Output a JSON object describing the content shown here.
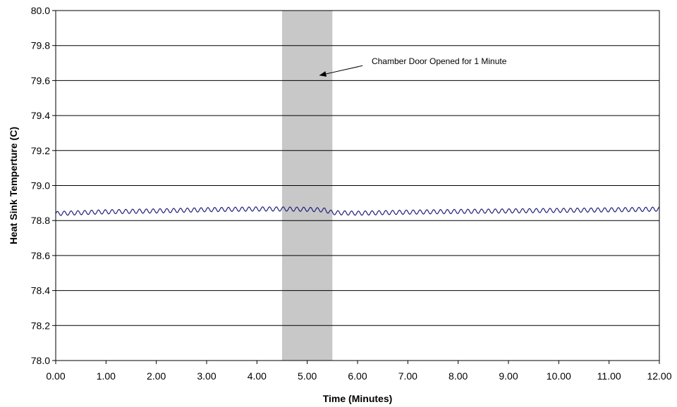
{
  "chart_data": {
    "type": "line",
    "title": "",
    "xlabel": "Time (Minutes)",
    "ylabel": "Heat Sink Temperture (C)",
    "xlim": [
      0,
      12
    ],
    "ylim": [
      78.0,
      80.0
    ],
    "x_ticks": [
      "0.00",
      "1.00",
      "2.00",
      "3.00",
      "4.00",
      "5.00",
      "6.00",
      "7.00",
      "8.00",
      "9.00",
      "10.00",
      "11.00",
      "12.00"
    ],
    "y_ticks": [
      "78.0",
      "78.2",
      "78.4",
      "78.6",
      "78.8",
      "79.0",
      "79.2",
      "79.4",
      "79.6",
      "79.8",
      "80.0"
    ],
    "grid": "horizontal",
    "legend": "none",
    "series": [
      {
        "color": "#1f1f7a",
        "oscillation_amplitude": 0.012,
        "oscillation_period_minutes": 0.136,
        "points": [
          {
            "x": 0.0,
            "y": 78.84
          },
          {
            "x": 1.0,
            "y": 78.85
          },
          {
            "x": 2.0,
            "y": 78.855
          },
          {
            "x": 3.0,
            "y": 78.862
          },
          {
            "x": 4.0,
            "y": 78.866
          },
          {
            "x": 4.5,
            "y": 78.866
          },
          {
            "x": 5.0,
            "y": 78.864
          },
          {
            "x": 5.35,
            "y": 78.86
          },
          {
            "x": 5.5,
            "y": 78.845
          },
          {
            "x": 6.0,
            "y": 78.842
          },
          {
            "x": 7.0,
            "y": 78.848
          },
          {
            "x": 8.0,
            "y": 78.852
          },
          {
            "x": 9.0,
            "y": 78.855
          },
          {
            "x": 10.0,
            "y": 78.858
          },
          {
            "x": 11.0,
            "y": 78.861
          },
          {
            "x": 12.0,
            "y": 78.865
          }
        ]
      }
    ],
    "shaded_region": {
      "x_start": 4.5,
      "x_end": 5.5,
      "color": "#c8c8c8"
    },
    "annotation": {
      "text": "Chamber Door Opened for 1 Minute",
      "text_at": {
        "x": 6.28,
        "y": 79.695
      },
      "arrow_from": {
        "x": 6.1,
        "y": 79.685
      },
      "arrow_to": {
        "x": 5.25,
        "y": 79.63
      }
    }
  }
}
